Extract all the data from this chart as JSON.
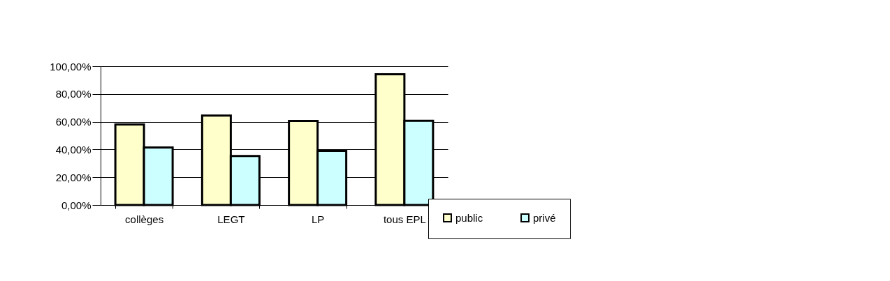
{
  "chart_data": {
    "type": "bar",
    "categories": [
      "collèges",
      "LEGT",
      "LP",
      "tous EPL"
    ],
    "series": [
      {
        "name": "public",
        "color": "#ffffcc",
        "values": [
          58,
          64.4,
          60.6,
          94.2
        ]
      },
      {
        "name": "privé",
        "color": "#ccffff",
        "values": [
          41.4,
          35.3,
          38.9,
          60.7
        ]
      }
    ],
    "ylim": [
      0,
      100
    ],
    "yticks": [
      {
        "value": 0,
        "label": "0,00%"
      },
      {
        "value": 20,
        "label": "20,00%"
      },
      {
        "value": 40,
        "label": "40,00%"
      },
      {
        "value": 60,
        "label": "60,00%"
      },
      {
        "value": 80,
        "label": "80,00%"
      },
      {
        "value": 100,
        "label": "100,00%"
      }
    ],
    "grid": "y",
    "legend": "bottom right"
  }
}
